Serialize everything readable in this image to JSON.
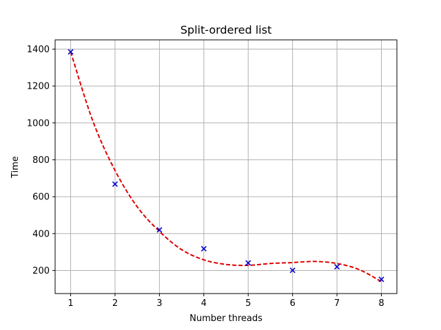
{
  "chart_data": {
    "type": "scatter",
    "title": "Split-ordered list",
    "xlabel": "Number threads",
    "ylabel": "Time",
    "xlim": [
      0.65,
      8.35
    ],
    "ylim": [
      75,
      1450
    ],
    "xticks": [
      1,
      2,
      3,
      4,
      5,
      6,
      7,
      8
    ],
    "yticks": [
      200,
      400,
      600,
      800,
      1000,
      1200,
      1400
    ],
    "grid": true,
    "series": [
      {
        "kind": "scatter",
        "marker": "x",
        "color": "#0000cc",
        "x": [
          1,
          2,
          3,
          4,
          5,
          6,
          7,
          8
        ],
        "y": [
          1385,
          668,
          420,
          318,
          241,
          201,
          220,
          152
        ]
      },
      {
        "kind": "line",
        "style": "dashed",
        "color": "#dd0000",
        "x": [
          1,
          1.5,
          2,
          2.5,
          3,
          3.5,
          4,
          4.5,
          5,
          5.5,
          6,
          6.5,
          7,
          7.5,
          8
        ],
        "y": [
          1385,
          1010,
          742,
          545,
          412,
          313,
          258,
          233,
          228,
          238,
          243,
          249,
          238,
          205,
          140
        ]
      }
    ]
  }
}
